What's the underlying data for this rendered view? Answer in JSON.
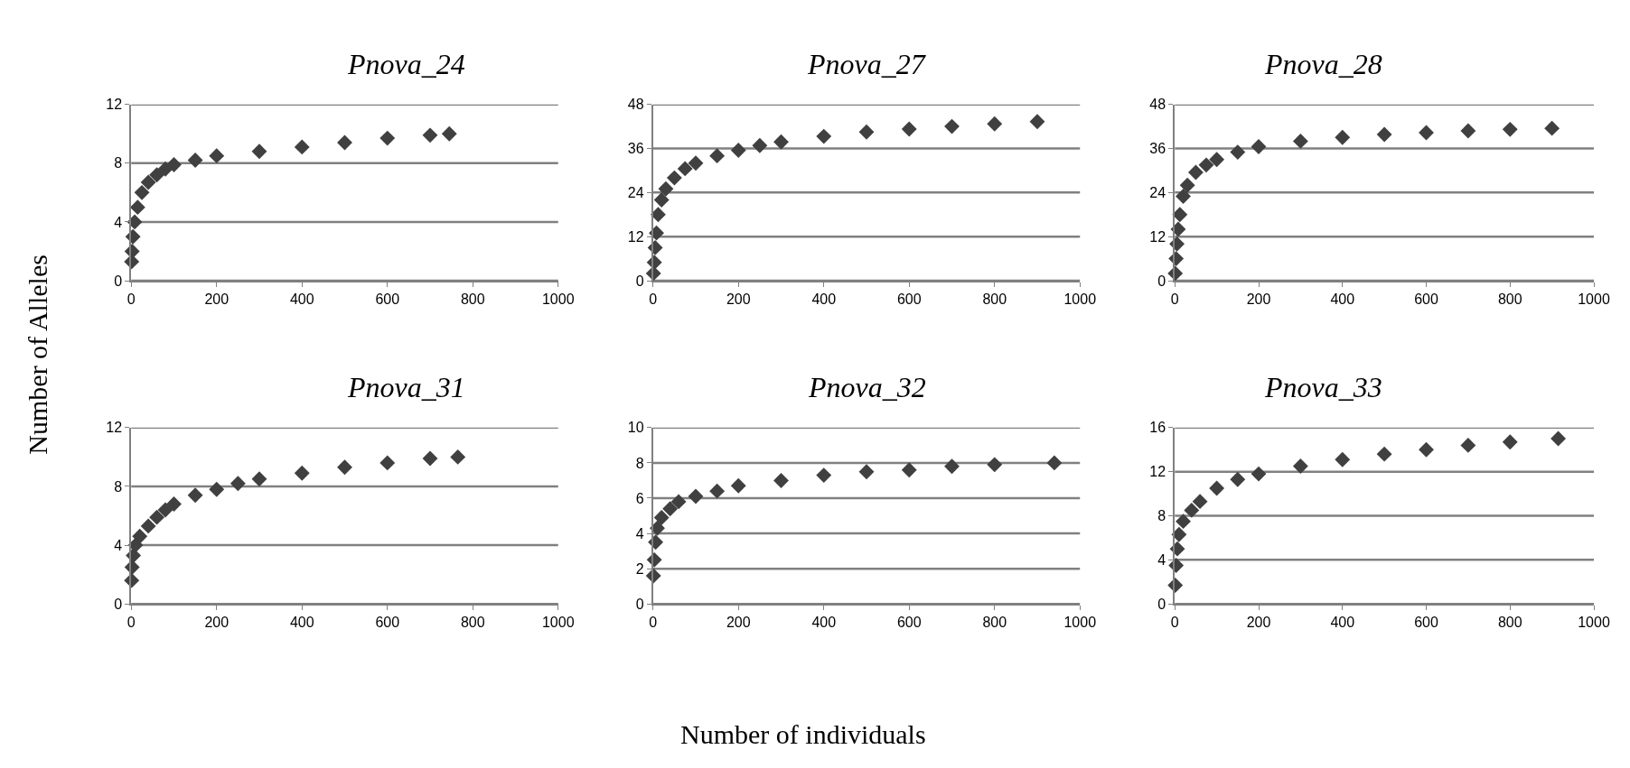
{
  "chart_data": [
    {
      "type": "scatter",
      "title": "Pnova_24",
      "ylabel": "Number of Alleles",
      "marker": "diamond",
      "grid": "y",
      "xlim": [
        0,
        1000
      ],
      "xticks": [
        0,
        200,
        400,
        600,
        800,
        1000
      ],
      "ylim": [
        0,
        12
      ],
      "yticks": [
        0,
        4,
        8,
        12
      ],
      "series": [
        {
          "color": "#404040",
          "x": [
            1,
            2,
            4,
            8,
            15,
            25,
            40,
            60,
            80,
            100,
            150,
            200,
            300,
            400,
            500,
            600,
            700,
            745
          ],
          "values": [
            1.3,
            2,
            3,
            4,
            5,
            6,
            6.7,
            7.2,
            7.6,
            7.9,
            8.2,
            8.5,
            8.8,
            9.1,
            9.4,
            9.7,
            9.9,
            10
          ]
        }
      ]
    },
    {
      "type": "scatter",
      "title": "Pnova_27",
      "marker": "diamond",
      "grid": "y",
      "xlim": [
        0,
        1000
      ],
      "xticks": [
        0,
        200,
        400,
        600,
        800,
        1000
      ],
      "ylim": [
        0,
        48
      ],
      "yticks": [
        0,
        12,
        24,
        36,
        48
      ],
      "series": [
        {
          "color": "#404040",
          "x": [
            1,
            3,
            5,
            8,
            12,
            20,
            30,
            50,
            75,
            100,
            150,
            200,
            250,
            300,
            400,
            500,
            600,
            700,
            800,
            900
          ],
          "values": [
            2,
            5,
            9,
            13,
            18,
            22,
            25,
            28,
            30.5,
            32,
            34,
            35.5,
            36.8,
            37.8,
            39.3,
            40.5,
            41.3,
            42,
            42.7,
            43.3
          ]
        }
      ]
    },
    {
      "type": "scatter",
      "title": "Pnova_28",
      "marker": "diamond",
      "grid": "y",
      "xlim": [
        0,
        1000
      ],
      "xticks": [
        0,
        200,
        400,
        600,
        800,
        1000
      ],
      "ylim": [
        0,
        48
      ],
      "yticks": [
        0,
        12,
        24,
        36,
        48
      ],
      "series": [
        {
          "color": "#404040",
          "x": [
            1,
            3,
            5,
            8,
            12,
            20,
            30,
            50,
            75,
            100,
            150,
            200,
            300,
            400,
            500,
            600,
            700,
            800,
            900
          ],
          "values": [
            2,
            6,
            10,
            14,
            18,
            23,
            26,
            29.5,
            31.5,
            33,
            35,
            36.5,
            38,
            39,
            39.8,
            40.3,
            40.8,
            41.2,
            41.5
          ]
        }
      ]
    },
    {
      "type": "scatter",
      "title": "Pnova_31",
      "marker": "diamond",
      "grid": "y",
      "xlim": [
        0,
        1000
      ],
      "xticks": [
        0,
        200,
        400,
        600,
        800,
        1000
      ],
      "ylim": [
        0,
        12
      ],
      "yticks": [
        0,
        4,
        8,
        12
      ],
      "series": [
        {
          "color": "#404040",
          "x": [
            1,
            2,
            5,
            10,
            20,
            40,
            60,
            80,
            100,
            150,
            200,
            250,
            300,
            400,
            500,
            600,
            700,
            765
          ],
          "values": [
            1.6,
            2.5,
            3.3,
            4,
            4.6,
            5.3,
            5.9,
            6.4,
            6.8,
            7.4,
            7.8,
            8.2,
            8.5,
            8.9,
            9.3,
            9.6,
            9.9,
            10
          ]
        }
      ]
    },
    {
      "type": "scatter",
      "title": "Pnova_32",
      "xlabel": "Number of individuals",
      "marker": "diamond",
      "grid": "y",
      "xlim": [
        0,
        1000
      ],
      "xticks": [
        0,
        200,
        400,
        600,
        800,
        1000
      ],
      "ylim": [
        0,
        10
      ],
      "yticks": [
        0,
        2,
        4,
        6,
        8,
        10
      ],
      "series": [
        {
          "color": "#404040",
          "x": [
            1,
            3,
            6,
            10,
            20,
            40,
            60,
            100,
            150,
            200,
            300,
            400,
            500,
            600,
            700,
            800,
            940
          ],
          "values": [
            1.6,
            2.5,
            3.5,
            4.3,
            4.9,
            5.4,
            5.8,
            6.1,
            6.4,
            6.7,
            7.0,
            7.3,
            7.5,
            7.6,
            7.8,
            7.9,
            8.0
          ]
        }
      ]
    },
    {
      "type": "scatter",
      "title": "Pnova_33",
      "marker": "diamond",
      "grid": "y",
      "xlim": [
        0,
        1000
      ],
      "xticks": [
        0,
        200,
        400,
        600,
        800,
        1000
      ],
      "ylim": [
        0,
        16
      ],
      "yticks": [
        0,
        4,
        8,
        12,
        16
      ],
      "series": [
        {
          "color": "#404040",
          "x": [
            1,
            3,
            6,
            10,
            20,
            40,
            60,
            100,
            150,
            200,
            300,
            400,
            500,
            600,
            700,
            800,
            915
          ],
          "values": [
            1.7,
            3.5,
            5,
            6.3,
            7.5,
            8.5,
            9.3,
            10.5,
            11.3,
            11.8,
            12.5,
            13.1,
            13.6,
            14,
            14.4,
            14.7,
            15
          ]
        }
      ]
    }
  ]
}
